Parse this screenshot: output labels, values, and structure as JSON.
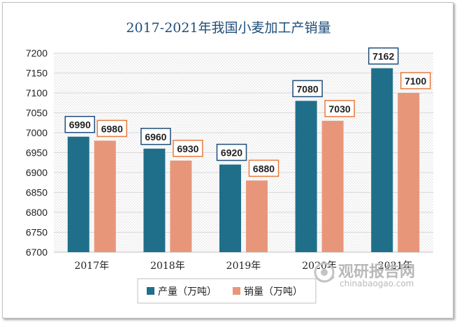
{
  "chart_data": {
    "type": "bar",
    "title": "2017-2021年我国小麦加工产销量",
    "categories": [
      "2017年",
      "2018年",
      "2019年",
      "2020年",
      "2021年"
    ],
    "series": [
      {
        "name": "产量（万吨）",
        "values": [
          6990,
          6960,
          6920,
          7080,
          7162
        ],
        "color": "#1f6f8b",
        "label_border": "#1f4e79"
      },
      {
        "name": "销量（万吨）",
        "values": [
          6980,
          6930,
          6880,
          7030,
          7100
        ],
        "color": "#e8967a",
        "label_border": "#e87a3c"
      }
    ],
    "ylim": [
      6700,
      7200
    ],
    "yticks": [
      6700,
      6750,
      6800,
      6850,
      6900,
      6950,
      7000,
      7050,
      7100,
      7150,
      7200
    ],
    "xlabel": "",
    "ylabel": "",
    "legend_position": "bottom"
  },
  "watermark": {
    "name": "观研报告网",
    "url": "chinabaogao.com"
  }
}
